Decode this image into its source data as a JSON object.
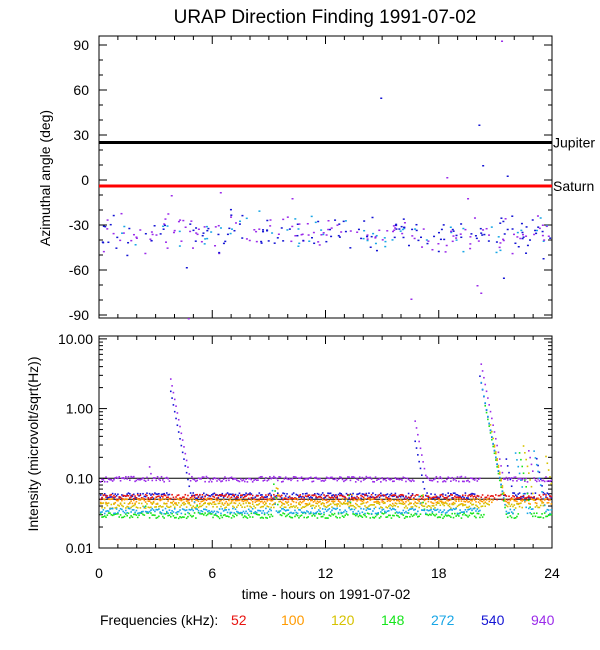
{
  "chart_data": {
    "title": "URAP Direction Finding  1991-07-02",
    "xlabel": "time - hours on 1991-07-02",
    "xlim": [
      0,
      24
    ],
    "xticks": [
      "0",
      "6",
      "12",
      "18",
      "24"
    ],
    "legend_label": "Frequencies (kHz):",
    "legend": [
      {
        "name": "52",
        "color": "#e8130f"
      },
      {
        "name": "100",
        "color": "#ff9a00"
      },
      {
        "name": "120",
        "color": "#d6c200"
      },
      {
        "name": "148",
        "color": "#16e51c"
      },
      {
        "name": "272",
        "color": "#18a6e6"
      },
      {
        "name": "540",
        "color": "#1414d4"
      },
      {
        "name": "940",
        "color": "#9b2bea"
      }
    ],
    "panels": [
      {
        "type": "scatter",
        "ylabel": "Azimuthal angle (deg)",
        "ylim": [
          -92,
          96
        ],
        "yticks": [
          "90",
          "60",
          "30",
          "0",
          "-30",
          "-60",
          "-90"
        ],
        "reference_lines": [
          {
            "label": "Jupiter",
            "value": 25,
            "color": "#000000"
          },
          {
            "label": "Saturn",
            "value": -4,
            "color": "#ff0000"
          }
        ],
        "cluster_center_deg": -35,
        "outliers": [
          [
            3.8,
            -10
          ],
          [
            4.6,
            -58
          ],
          [
            4.7,
            -92
          ],
          [
            6.4,
            -8
          ],
          [
            10.2,
            -12
          ],
          [
            14.9,
            55
          ],
          [
            16.5,
            -79
          ],
          [
            18.4,
            2
          ],
          [
            19.5,
            -12
          ],
          [
            20.1,
            37
          ],
          [
            20.3,
            10
          ],
          [
            20.0,
            -70
          ],
          [
            20.2,
            -75
          ],
          [
            21.3,
            93
          ],
          [
            21.6,
            3
          ],
          [
            21.4,
            -65
          ],
          [
            23.5,
            -52
          ]
        ]
      },
      {
        "type": "line",
        "scale": "log",
        "ylabel": "Intensity (microvolt/sqrt(Hz))",
        "ylim": [
          0.01,
          11
        ],
        "yticks": [
          "10.00",
          "1.00",
          "0.10",
          "0.01"
        ],
        "series": [
          {
            "name": "940",
            "base": 0.1,
            "peaks": [
              [
                3.7,
                3.3
              ],
              [
                2.6,
                0.17
              ],
              [
                16.7,
                0.7
              ],
              [
                20.2,
                4.6
              ],
              [
                22.7,
                0.28
              ]
            ]
          },
          {
            "name": "540",
            "base": 0.058,
            "peaks": [
              [
                3.7,
                2.2
              ],
              [
                16.7,
                0.36
              ],
              [
                20.1,
                3.4
              ],
              [
                21.5,
                0.22
              ],
              [
                23.1,
                0.23
              ]
            ]
          },
          {
            "name": "52",
            "base": 0.055,
            "peaks": [
              [
                2.5,
                0.058
              ],
              [
                10.6,
                0.056
              ],
              [
                16.4,
                0.054
              ]
            ]
          },
          {
            "name": "100",
            "base": 0.048,
            "peaks": [
              [
                9.4,
                0.08
              ],
              [
                13.3,
                0.07
              ],
              [
                17.1,
                0.065
              ],
              [
                20.9,
                0.3
              ]
            ]
          },
          {
            "name": "120",
            "base": 0.042,
            "peaks": [
              [
                9.3,
                0.09
              ],
              [
                20.7,
                0.6
              ],
              [
                22.4,
                0.35
              ],
              [
                23.6,
                0.24
              ]
            ]
          },
          {
            "name": "148",
            "base": 0.03,
            "peaks": [
              [
                2.4,
                0.045
              ],
              [
                5.1,
                0.05
              ],
              [
                9.2,
                0.09
              ],
              [
                13.2,
                0.06
              ],
              [
                17.0,
                0.07
              ],
              [
                20.4,
                1.2
              ],
              [
                22.2,
                0.27
              ]
            ]
          },
          {
            "name": "272",
            "base": 0.035,
            "peaks": [
              [
                2.3,
                0.048
              ],
              [
                5.0,
                0.05
              ],
              [
                9.1,
                0.08
              ],
              [
                13.1,
                0.055
              ],
              [
                16.9,
                0.06
              ],
              [
                20.2,
                2.5
              ],
              [
                22.0,
                0.26
              ],
              [
                23.0,
                0.26
              ]
            ]
          }
        ]
      }
    ]
  }
}
